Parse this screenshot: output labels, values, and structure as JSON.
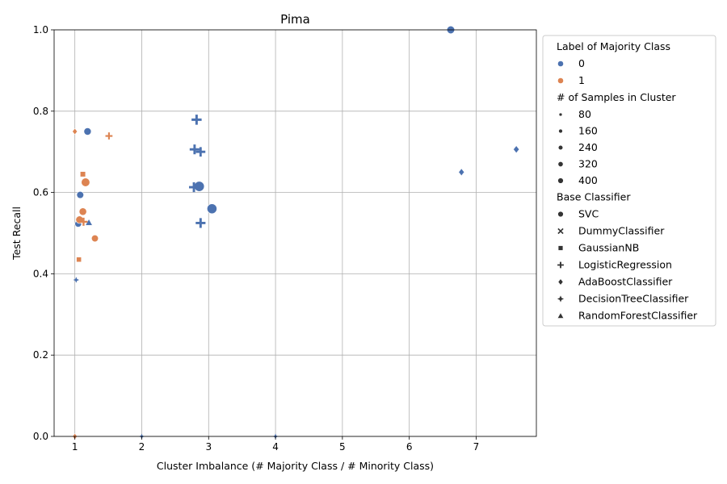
{
  "chart_data": {
    "type": "scatter",
    "title": "Pima",
    "xlabel": "Cluster Imbalance (# Majority Class / # Minority Class)",
    "ylabel": "Test Recall",
    "xlim": [
      0.69,
      7.9
    ],
    "ylim": [
      0.0,
      1.0
    ],
    "xticks": [
      1,
      2,
      3,
      4,
      5,
      6,
      7
    ],
    "yticks": [
      0.0,
      0.2,
      0.4,
      0.6,
      0.8,
      1.0
    ],
    "xtick_labels": [
      "1",
      "2",
      "3",
      "4",
      "5",
      "6",
      "7"
    ],
    "ytick_labels": [
      "0.0",
      "0.2",
      "0.4",
      "0.6",
      "0.8",
      "1.0"
    ],
    "grid": true,
    "legend_position": "outside-right",
    "hue": {
      "title": "Label of Majority Class",
      "levels": [
        {
          "label": "0",
          "color": "#4c72b0"
        },
        {
          "label": "1",
          "color": "#dd8452"
        }
      ]
    },
    "size": {
      "title": "# of Samples in Cluster",
      "levels": [
        80,
        160,
        240,
        320,
        400
      ],
      "labels": [
        "80",
        "160",
        "240",
        "320",
        "400"
      ]
    },
    "style": {
      "title": "Base Classifier",
      "levels": [
        {
          "label": "SVC",
          "marker": "circle"
        },
        {
          "label": "DummyClassifier",
          "marker": "x"
        },
        {
          "label": "GaussianNB",
          "marker": "square"
        },
        {
          "label": "LogisticRegression",
          "marker": "plus"
        },
        {
          "label": "AdaBoostClassifier",
          "marker": "diamond"
        },
        {
          "label": "DecisionTreeClassifier",
          "marker": "star"
        },
        {
          "label": "RandomForestClassifier",
          "marker": "triangle"
        }
      ]
    },
    "points": [
      {
        "x": 6.62,
        "y": 1.0,
        "hue": "0",
        "size": 200,
        "marker": "circle"
      },
      {
        "x": 1.19,
        "y": 0.75,
        "hue": "0",
        "size": 170,
        "marker": "circle"
      },
      {
        "x": 1.08,
        "y": 0.594,
        "hue": "0",
        "size": 150,
        "marker": "circle"
      },
      {
        "x": 1.05,
        "y": 0.523,
        "hue": "0",
        "size": 130,
        "marker": "circle"
      },
      {
        "x": 2.86,
        "y": 0.615,
        "hue": "0",
        "size": 400,
        "marker": "circle"
      },
      {
        "x": 3.05,
        "y": 0.56,
        "hue": "0",
        "size": 380,
        "marker": "circle"
      },
      {
        "x": 2.82,
        "y": 0.779,
        "hue": "0",
        "size": 280,
        "marker": "plus"
      },
      {
        "x": 2.79,
        "y": 0.706,
        "hue": "0",
        "size": 260,
        "marker": "plus"
      },
      {
        "x": 2.88,
        "y": 0.7,
        "hue": "0",
        "size": 240,
        "marker": "plus"
      },
      {
        "x": 2.78,
        "y": 0.613,
        "hue": "0",
        "size": 260,
        "marker": "plus"
      },
      {
        "x": 2.88,
        "y": 0.525,
        "hue": "0",
        "size": 260,
        "marker": "plus"
      },
      {
        "x": 7.6,
        "y": 0.706,
        "hue": "0",
        "size": 120,
        "marker": "diamond"
      },
      {
        "x": 6.78,
        "y": 0.65,
        "hue": "0",
        "size": 110,
        "marker": "diamond"
      },
      {
        "x": 1.21,
        "y": 0.526,
        "hue": "0",
        "size": 110,
        "marker": "triangle"
      },
      {
        "x": 1.02,
        "y": 0.385,
        "hue": "0",
        "size": 50,
        "marker": "star"
      },
      {
        "x": 2.0,
        "y": 0.0,
        "hue": "0",
        "size": 40,
        "marker": "star"
      },
      {
        "x": 4.0,
        "y": 0.0,
        "hue": "0",
        "size": 40,
        "marker": "star"
      },
      {
        "x": 1.16,
        "y": 0.625,
        "hue": "1",
        "size": 260,
        "marker": "circle"
      },
      {
        "x": 1.12,
        "y": 0.553,
        "hue": "1",
        "size": 180,
        "marker": "circle"
      },
      {
        "x": 1.07,
        "y": 0.533,
        "hue": "1",
        "size": 180,
        "marker": "circle"
      },
      {
        "x": 1.3,
        "y": 0.487,
        "hue": "1",
        "size": 140,
        "marker": "circle"
      },
      {
        "x": 1.12,
        "y": 0.645,
        "hue": "1",
        "size": 100,
        "marker": "square"
      },
      {
        "x": 1.06,
        "y": 0.435,
        "hue": "1",
        "size": 80,
        "marker": "square"
      },
      {
        "x": 1.51,
        "y": 0.739,
        "hue": "1",
        "size": 100,
        "marker": "plus"
      },
      {
        "x": 1.13,
        "y": 0.528,
        "hue": "1",
        "size": 150,
        "marker": "plus"
      },
      {
        "x": 1.0,
        "y": 0.75,
        "hue": "1",
        "size": 70,
        "marker": "diamond"
      },
      {
        "x": 1.0,
        "y": 0.0,
        "hue": "1",
        "size": 60,
        "marker": "diamond"
      }
    ]
  }
}
